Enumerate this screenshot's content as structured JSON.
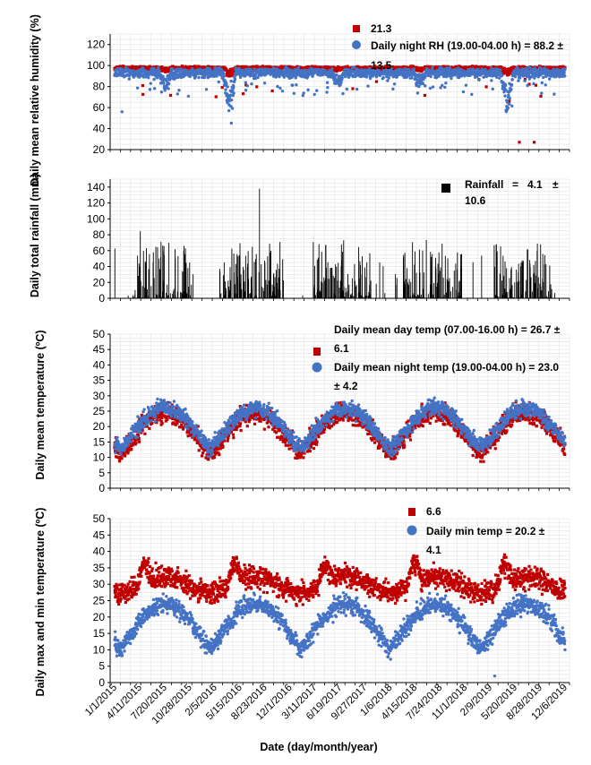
{
  "figure": {
    "xlabel": "Date (day/month/year)",
    "date_ticks": [
      "1/1/2015",
      "4/11/2015",
      "7/20/2015",
      "10/28/2015",
      "2/5/2016",
      "5/15/2016",
      "8/23/2016",
      "12/1/2016",
      "3/11/2017",
      "6/19/2017",
      "9/27/2017",
      "1/6/2018",
      "4/15/2018",
      "7/24/2018",
      "11/1/2018",
      "2/9/2019",
      "5/20/2019",
      "8/28/2019",
      "12/6/2019"
    ]
  },
  "chart_data": [
    {
      "type": "scatter",
      "id": "rh",
      "ylabel": "Daily mean relative humidity (%)",
      "ylim": [
        20,
        130
      ],
      "yticks": [
        20,
        40,
        60,
        80,
        100,
        120
      ],
      "x_range": [
        "2015-01-01",
        "2019-12-31"
      ],
      "grid": true,
      "legend": [
        "21.3",
        "Daily night RH (19.00-04.00 h) = 88.2 ±",
        "13.5"
      ],
      "series": [
        {
          "color": "#c00000",
          "marker": "square",
          "approx_level": 97,
          "outlier_low": 27
        },
        {
          "color": "#4472c4",
          "marker": "circle",
          "approx_level": 93,
          "dips": [
            [
              "2016-03",
              62
            ],
            [
              "2019-04",
              68
            ]
          ]
        }
      ]
    },
    {
      "type": "bar",
      "id": "rain",
      "ylabel": "Daily total rainfall (mm)",
      "ylim": [
        0,
        150
      ],
      "yticks": [
        0,
        20,
        40,
        60,
        80,
        100,
        120,
        140
      ],
      "x_range": [
        "2015-01-01",
        "2019-12-31"
      ],
      "grid": true,
      "legend": [
        "Rainfall",
        "=",
        "4.1",
        "±",
        "10.6"
      ],
      "series": [
        {
          "color": "#000000",
          "max": 138,
          "max_date": "2016-08-10"
        }
      ]
    },
    {
      "type": "scatter",
      "id": "meantemp",
      "ylabel": "Daily mean temperature (ºC)",
      "ylim": [
        0,
        50
      ],
      "yticks": [
        0,
        5,
        10,
        15,
        20,
        25,
        30,
        35,
        40,
        45,
        50
      ],
      "x_range": [
        "2015-01-01",
        "2019-12-31"
      ],
      "grid": true,
      "legend": [
        "Daily mean day temp (07.00-16.00 h) = 26.7 ±",
        "6.1",
        "Daily mean night temp (19.00-04.00 h) = 23.0",
        "± 4.2"
      ],
      "series": [
        {
          "color": "#c00000",
          "marker": "square",
          "summer_level": 25,
          "winter_level": 10
        },
        {
          "color": "#4472c4",
          "marker": "circle",
          "summer_level": 26,
          "winter_level": 12
        }
      ]
    },
    {
      "type": "scatter",
      "id": "maxmin",
      "ylabel": "Daily max and min temperature (ºC)",
      "ylim": [
        0,
        50
      ],
      "yticks": [
        0,
        5,
        10,
        15,
        20,
        25,
        30,
        35,
        40,
        45,
        50
      ],
      "x_range": [
        "2015-01-01",
        "2019-12-31"
      ],
      "grid": true,
      "legend": [
        "6.6",
        "Daily min temp = 20.2 ±",
        "4.1"
      ],
      "series": [
        {
          "color": "#c00000",
          "marker": "square",
          "summer_level": 31,
          "spring_peak": 40,
          "winter_level": 27
        },
        {
          "color": "#4472c4",
          "marker": "circle",
          "summer_level": 24,
          "winter_level": 10
        }
      ]
    }
  ]
}
